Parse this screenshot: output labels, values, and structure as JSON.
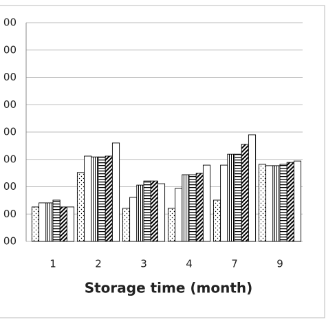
{
  "chart_data": {
    "type": "bar",
    "x_label": "Storage time (month)",
    "categories": [
      "1",
      "2",
      "3",
      "4",
      "7",
      "9"
    ],
    "ylim": [
      0,
      8
    ],
    "yticks": [
      {
        "value": 0,
        "label": "00"
      },
      {
        "value": 1,
        "label": "00"
      },
      {
        "value": 2,
        "label": "00"
      },
      {
        "value": 3,
        "label": "00"
      },
      {
        "value": 4,
        "label": "00"
      },
      {
        "value": 5,
        "label": "00"
      },
      {
        "value": 6,
        "label": "00"
      },
      {
        "value": 7,
        "label": "00"
      },
      {
        "value": 8,
        "label": "00"
      }
    ],
    "grid": true,
    "series": [
      {
        "pattern": "dots",
        "color": "#000000",
        "values": [
          1.26,
          2.52,
          1.21,
          1.21,
          1.51,
          2.82
        ]
      },
      {
        "pattern": "plain",
        "color": "#000000",
        "values": [
          1.41,
          3.12,
          1.61,
          1.94,
          2.79,
          2.77
        ]
      },
      {
        "pattern": "vlines",
        "color": "#000000",
        "values": [
          1.41,
          3.09,
          2.06,
          2.44,
          3.19,
          2.77
        ]
      },
      {
        "pattern": "hlines",
        "color": "#000000",
        "values": [
          1.51,
          3.09,
          2.21,
          2.44,
          3.19,
          2.82
        ]
      },
      {
        "pattern": "diag",
        "color": "#000000",
        "values": [
          1.26,
          3.12,
          2.21,
          2.49,
          3.55,
          2.89
        ]
      },
      {
        "pattern": "plain",
        "color": "#000000",
        "values": [
          1.26,
          3.6,
          2.11,
          2.79,
          3.9,
          2.94
        ]
      }
    ]
  }
}
